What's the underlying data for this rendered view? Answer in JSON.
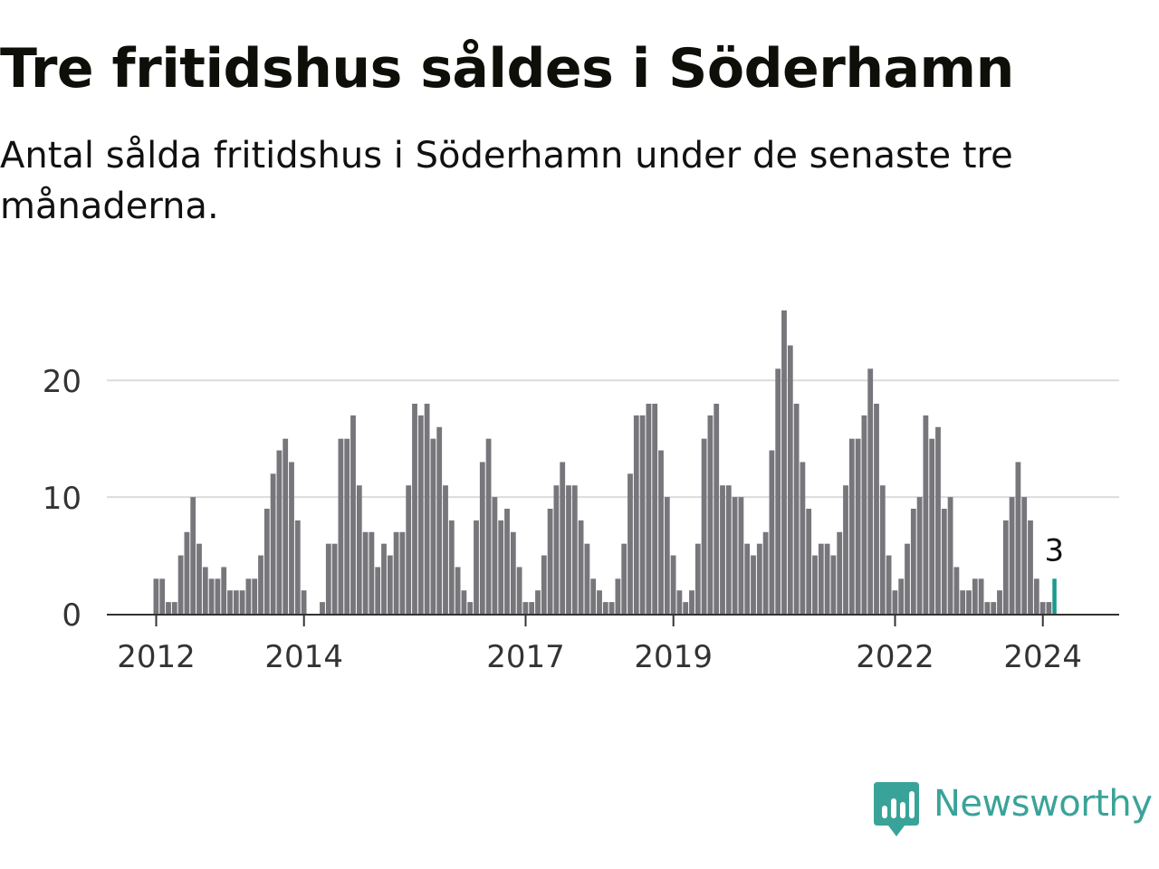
{
  "title": "Tre fritidshus såldes i Söderhamn",
  "subtitle": "Antal sålda fritidshus i Söderhamn under de senaste tre månaderna.",
  "brand": {
    "name": "Newsworthy",
    "color": "#3aa399",
    "icon": "bar-chart-speech-bubble-icon"
  },
  "chart_data": {
    "type": "bar",
    "start": "2012-01",
    "interval": "month",
    "y_ticks": [
      0,
      10,
      20
    ],
    "ylim": [
      0,
      27
    ],
    "x_tick_labels": [
      "2012",
      "2014",
      "2017",
      "2019",
      "2022",
      "2024"
    ],
    "grid": true,
    "bar_color": "#77767b",
    "highlight_color": "#1a9a8c",
    "highlight_label": "3",
    "values": [
      3,
      3,
      1,
      1,
      5,
      7,
      10,
      6,
      4,
      3,
      3,
      4,
      2,
      2,
      2,
      3,
      3,
      5,
      9,
      12,
      14,
      15,
      13,
      8,
      2,
      0,
      0,
      1,
      6,
      6,
      15,
      15,
      17,
      11,
      7,
      7,
      4,
      6,
      5,
      7,
      7,
      11,
      18,
      17,
      18,
      15,
      16,
      11,
      8,
      4,
      2,
      1,
      8,
      13,
      15,
      10,
      8,
      9,
      7,
      4,
      1,
      1,
      2,
      5,
      9,
      11,
      13,
      11,
      11,
      8,
      6,
      3,
      2,
      1,
      1,
      3,
      6,
      12,
      17,
      17,
      18,
      18,
      14,
      10,
      5,
      2,
      1,
      2,
      6,
      15,
      17,
      18,
      11,
      11,
      10,
      10,
      6,
      5,
      6,
      7,
      14,
      21,
      26,
      23,
      18,
      13,
      9,
      5,
      6,
      6,
      5,
      7,
      11,
      15,
      15,
      17,
      21,
      18,
      11,
      5,
      2,
      3,
      6,
      9,
      10,
      17,
      15,
      16,
      9,
      10,
      4,
      2,
      2,
      3,
      3,
      1,
      1,
      2,
      8,
      10,
      13,
      10,
      8,
      3,
      1,
      1,
      3
    ]
  }
}
